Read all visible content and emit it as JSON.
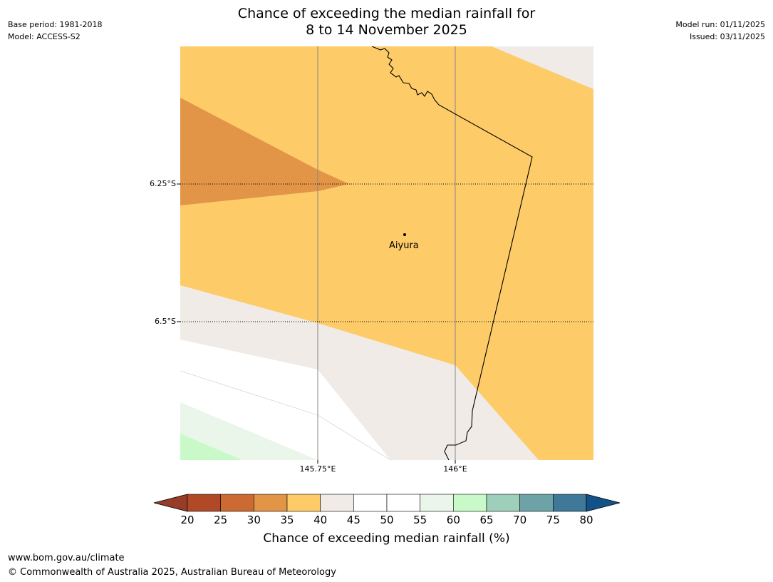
{
  "header": {
    "base_period": "Base period: 1981-2018",
    "model": "Model: ACCESS-S2",
    "model_run": "Model run: 01/11/2025",
    "issued": "Issued: 03/11/2025",
    "title_line1": "Chance of exceeding the median rainfall for",
    "title_line2": "8 to 14 November 2025"
  },
  "map": {
    "lat_labels": [
      "6.25°S",
      "6.5°S"
    ],
    "lon_labels": [
      "145.75°E",
      "146°E"
    ],
    "place": {
      "name": "Aiyura"
    }
  },
  "colorbar": {
    "ticks": [
      "20",
      "25",
      "30",
      "35",
      "40",
      "45",
      "50",
      "55",
      "60",
      "65",
      "70",
      "75",
      "80"
    ],
    "label": "Chance of exceeding median rainfall (%)",
    "colors": [
      "#b04a26",
      "#cc6a33",
      "#e29447",
      "#fdcb68",
      "#f0ebe6",
      "#ffffff",
      "#ffffff",
      "#eaf6e9",
      "#caf9c9",
      "#9ecfba",
      "#6da3a6",
      "#3f7898"
    ],
    "under_color": "#963c28",
    "over_color": "#135289"
  },
  "footer": {
    "url": "www.bom.gov.au/climate",
    "copyright": "© Commonwealth of Australia 2025, Australian Bureau of Meteorology"
  }
}
